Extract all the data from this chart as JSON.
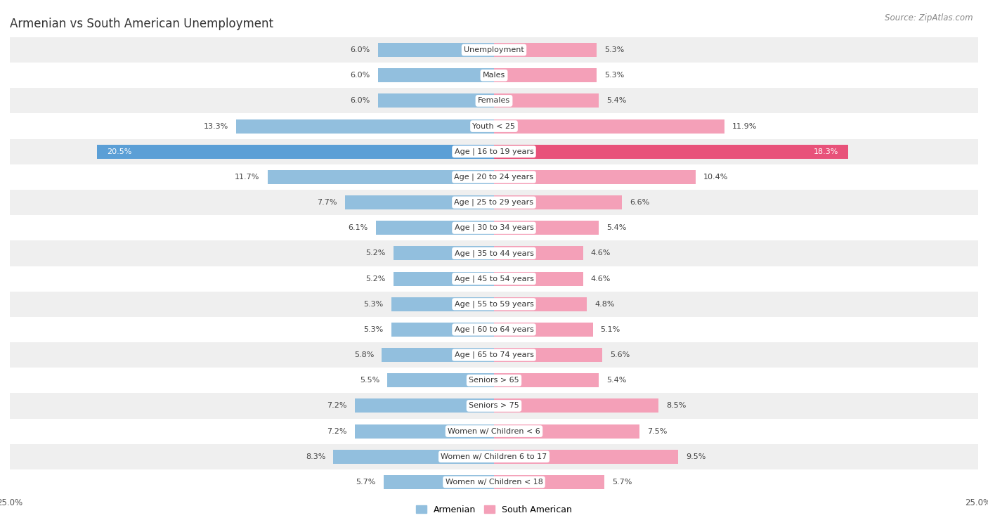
{
  "title": "Armenian vs South American Unemployment",
  "source": "Source: ZipAtlas.com",
  "categories": [
    "Unemployment",
    "Males",
    "Females",
    "Youth < 25",
    "Age | 16 to 19 years",
    "Age | 20 to 24 years",
    "Age | 25 to 29 years",
    "Age | 30 to 34 years",
    "Age | 35 to 44 years",
    "Age | 45 to 54 years",
    "Age | 55 to 59 years",
    "Age | 60 to 64 years",
    "Age | 65 to 74 years",
    "Seniors > 65",
    "Seniors > 75",
    "Women w/ Children < 6",
    "Women w/ Children 6 to 17",
    "Women w/ Children < 18"
  ],
  "armenian": [
    6.0,
    6.0,
    6.0,
    13.3,
    20.5,
    11.7,
    7.7,
    6.1,
    5.2,
    5.2,
    5.3,
    5.3,
    5.8,
    5.5,
    7.2,
    7.2,
    8.3,
    5.7
  ],
  "south_american": [
    5.3,
    5.3,
    5.4,
    11.9,
    18.3,
    10.4,
    6.6,
    5.4,
    4.6,
    4.6,
    4.8,
    5.1,
    5.6,
    5.4,
    8.5,
    7.5,
    9.5,
    5.7
  ],
  "armenian_color": "#92bfde",
  "south_american_color": "#f4a0b8",
  "armenian_highlight_color": "#5b9fd6",
  "south_american_highlight_color": "#e8527a",
  "background_row_odd": "#efefef",
  "background_row_even": "#ffffff",
  "highlight_idx": 4,
  "xlim": 25.0,
  "legend_armenian": "Armenian",
  "legend_south_american": "South American",
  "title_fontsize": 12,
  "source_fontsize": 8.5,
  "label_fontsize": 8,
  "category_fontsize": 8,
  "bar_height": 0.55
}
